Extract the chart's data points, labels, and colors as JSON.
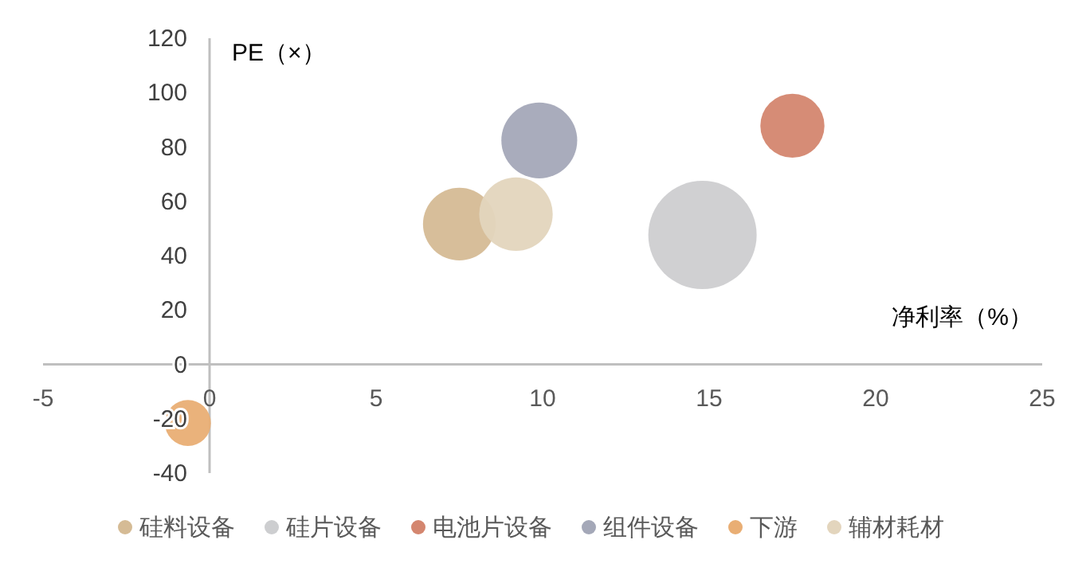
{
  "chart_data": {
    "type": "bubble",
    "xlabel": "净利率（%）",
    "ylabel": "PE（×）",
    "xlim": [
      -5,
      25
    ],
    "xticks": [
      -5,
      0,
      5,
      10,
      15,
      20,
      25
    ],
    "ylim": [
      -40,
      120
    ],
    "yticks": [
      -40,
      -20,
      0,
      20,
      40,
      60,
      80,
      100,
      120
    ],
    "grid": false,
    "legend": "bottom",
    "series": [
      {
        "name": "硅料设备",
        "color": "#d5bb95",
        "x": [
          7.5
        ],
        "values": [
          51.6
        ],
        "sizes": [
          0.45
        ]
      },
      {
        "name": "硅片设备",
        "color": "#cdced0",
        "x": [
          14.8
        ],
        "values": [
          47.6
        ],
        "sizes": [
          1
        ]
      },
      {
        "name": "电池片设备",
        "color": "#d4866f",
        "x": [
          17.5
        ],
        "values": [
          87.8
        ],
        "sizes": [
          0.35
        ]
      },
      {
        "name": "组件设备",
        "color": "#a4a8b8",
        "x": [
          9.9
        ],
        "values": [
          82.4
        ],
        "sizes": [
          0.49
        ]
      },
      {
        "name": "下游",
        "color": "#e9ae74",
        "x": [
          -0.65
        ],
        "values": [
          -21.6
        ],
        "sizes": [
          0.18
        ]
      },
      {
        "name": "辅材耗材",
        "color": "#e3d5bd",
        "x": [
          9.2
        ],
        "values": [
          55.3
        ],
        "sizes": [
          0.46
        ]
      }
    ]
  }
}
